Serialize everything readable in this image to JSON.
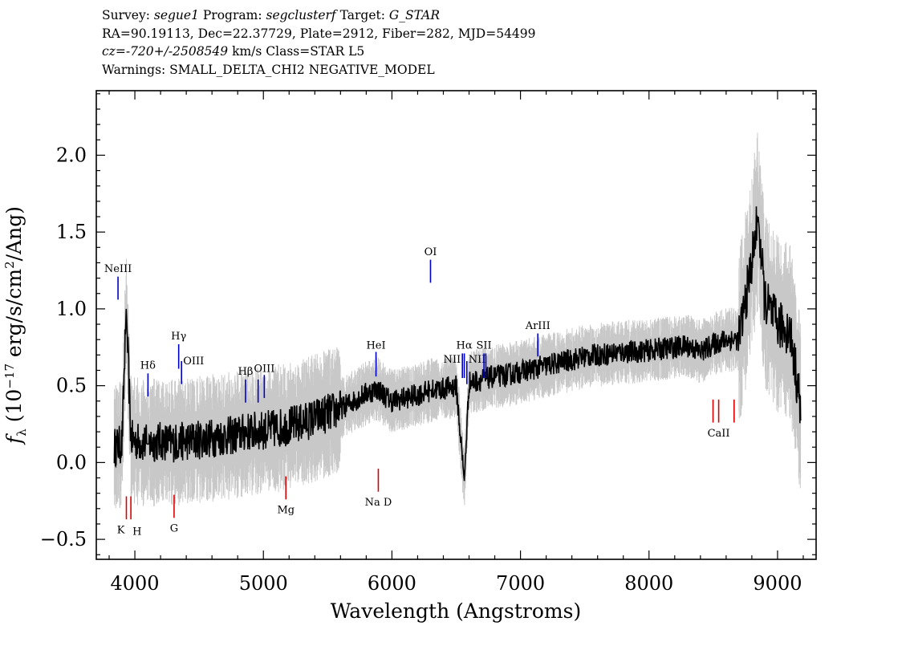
{
  "header": {
    "survey_label": "Survey:",
    "survey": "segue1",
    "program_label": "Program:",
    "program": "segclusterf",
    "target_label": "Target:",
    "target": "G_STAR",
    "line2": "RA=90.19113, Dec=22.37729, Plate=2912, Fiber=282, MJD=54499",
    "cz": "cz=-720+/-2508549",
    "line3_rest": " km/s Class=STAR L5",
    "line4": "Warnings: SMALL_DELTA_CHI2 NEGATIVE_MODEL"
  },
  "chart_data": {
    "type": "line",
    "xlabel": "Wavelength (Angstroms)",
    "ylabel": "f_λ (10^-17 erg/s/cm^2/Ang)",
    "xlim": [
      3700,
      9300
    ],
    "ylim": [
      -0.63,
      2.42
    ],
    "x_ticks": [
      4000,
      5000,
      6000,
      7000,
      8000,
      9000
    ],
    "y_ticks": [
      -0.5,
      0.0,
      0.5,
      1.0,
      1.5,
      2.0
    ],
    "x_tick_labels": [
      "4000",
      "5000",
      "6000",
      "7000",
      "8000",
      "9000"
    ],
    "y_tick_labels": [
      "−0.5",
      "0.0",
      "0.5",
      "1.0",
      "1.5",
      "2.0"
    ],
    "grid": false,
    "colors": {
      "spectrum": "#000000",
      "error_band": "#c8c8c8",
      "emission": "#0000cc",
      "absorption": "#dd0000"
    },
    "series": [
      {
        "role": "spectrum",
        "x": [
          3840,
          3900,
          3933,
          3970,
          4050,
          4101,
          4200,
          4300,
          4400,
          4500,
          4600,
          4700,
          4800,
          4861,
          4900,
          5000,
          5100,
          5200,
          5300,
          5400,
          5500,
          5600,
          5700,
          5800,
          5890,
          5950,
          6000,
          6100,
          6200,
          6300,
          6400,
          6500,
          6563,
          6600,
          6700,
          6800,
          6900,
          7000,
          7100,
          7200,
          7300,
          7400,
          7500,
          7600,
          7700,
          7800,
          7900,
          8000,
          8100,
          8200,
          8300,
          8400,
          8500,
          8600,
          8700,
          8780,
          8850,
          8900,
          9000,
          9100,
          9180
        ],
        "y": [
          0.1,
          0.12,
          1.0,
          0.15,
          0.13,
          0.12,
          0.14,
          0.13,
          0.14,
          0.15,
          0.16,
          0.17,
          0.18,
          0.2,
          0.2,
          0.21,
          0.22,
          0.24,
          0.26,
          0.29,
          0.32,
          0.35,
          0.4,
          0.45,
          0.48,
          0.43,
          0.4,
          0.42,
          0.44,
          0.47,
          0.48,
          0.5,
          -0.12,
          0.52,
          0.54,
          0.56,
          0.57,
          0.59,
          0.61,
          0.63,
          0.65,
          0.67,
          0.69,
          0.7,
          0.71,
          0.72,
          0.72,
          0.73,
          0.74,
          0.75,
          0.76,
          0.72,
          0.77,
          0.8,
          0.8,
          1.2,
          1.6,
          1.05,
          0.9,
          0.85,
          0.35
        ]
      }
    ],
    "spectral_lines": [
      {
        "name": "NeIII",
        "type": "emission",
        "x": 3869,
        "y_top": 1.21,
        "y_bottom": 1.06,
        "label_y": 1.24,
        "anchor": "middle"
      },
      {
        "name": "Hδ",
        "type": "emission",
        "x": 4102,
        "y_top": 0.58,
        "y_bottom": 0.43,
        "label_y": 0.61,
        "anchor": "middle"
      },
      {
        "name": "Hγ",
        "type": "emission",
        "x": 4341,
        "y_top": 0.77,
        "y_bottom": 0.61,
        "label_y": 0.8,
        "anchor": "middle"
      },
      {
        "name": "OIII",
        "type": "emission",
        "x": 4363,
        "y_top": 0.66,
        "y_bottom": 0.51,
        "label_y": 0.64,
        "anchor": "start"
      },
      {
        "name": "Hβ",
        "type": "emission",
        "x": 4861,
        "y_top": 0.54,
        "y_bottom": 0.39,
        "label_y": 0.57,
        "anchor": "middle"
      },
      {
        "name": "OIII",
        "type": "emission",
        "x": 4959,
        "y_top": 0.54,
        "y_bottom": 0.39,
        "label_y": null,
        "anchor": "middle"
      },
      {
        "name": "OIII",
        "type": "emission",
        "x": 5007,
        "y_top": 0.57,
        "y_bottom": 0.42,
        "label_y": 0.59,
        "anchor": "middle"
      },
      {
        "name": "HeI",
        "type": "emission",
        "x": 5876,
        "y_top": 0.72,
        "y_bottom": 0.56,
        "label_y": 0.74,
        "anchor": "middle"
      },
      {
        "name": "OI",
        "type": "emission",
        "x": 6300,
        "y_top": 1.32,
        "y_bottom": 1.17,
        "label_y": 1.35,
        "anchor": "middle"
      },
      {
        "name": "NII",
        "type": "emission",
        "x": 6548,
        "y_top": 0.71,
        "y_bottom": 0.55,
        "label_y": 0.65,
        "anchor": "end"
      },
      {
        "name": "Hα",
        "type": "emission",
        "x": 6563,
        "y_top": 0.71,
        "y_bottom": 0.55,
        "label_y": 0.74,
        "anchor": "middle"
      },
      {
        "name": "NII",
        "type": "emission",
        "x": 6583,
        "y_top": 0.66,
        "y_bottom": 0.51,
        "label_y": 0.65,
        "anchor": "start"
      },
      {
        "name": "SII",
        "type": "emission",
        "x": 6716,
        "y_top": 0.71,
        "y_bottom": 0.55,
        "label_y": 0.74,
        "anchor": "middle"
      },
      {
        "name": "SII",
        "type": "emission",
        "x": 6731,
        "y_top": 0.71,
        "y_bottom": 0.55,
        "label_y": null,
        "anchor": "middle"
      },
      {
        "name": "ArIII",
        "type": "emission",
        "x": 7135,
        "y_top": 0.84,
        "y_bottom": 0.69,
        "label_y": 0.87,
        "anchor": "middle"
      },
      {
        "name": "K",
        "type": "absorption",
        "x": 3934,
        "y_top": -0.22,
        "y_bottom": -0.37,
        "label_y": -0.46,
        "anchor": "end"
      },
      {
        "name": "H",
        "type": "absorption",
        "x": 3969,
        "y_top": -0.22,
        "y_bottom": -0.37,
        "label_y": -0.47,
        "anchor": "start"
      },
      {
        "name": "G",
        "type": "absorption",
        "x": 4305,
        "y_top": -0.21,
        "y_bottom": -0.36,
        "label_y": -0.45,
        "anchor": "middle"
      },
      {
        "name": "Mg",
        "type": "absorption",
        "x": 5175,
        "y_top": -0.09,
        "y_bottom": -0.24,
        "label_y": -0.33,
        "anchor": "middle"
      },
      {
        "name": "Na D",
        "type": "absorption",
        "x": 5894,
        "y_top": -0.04,
        "y_bottom": -0.19,
        "label_y": -0.28,
        "anchor": "middle"
      },
      {
        "name": "CaII",
        "type": "absorption",
        "x": 8498,
        "y_top": 0.41,
        "y_bottom": 0.26,
        "label_y": null,
        "anchor": "middle"
      },
      {
        "name": "CaII",
        "type": "absorption",
        "x": 8542,
        "y_top": 0.41,
        "y_bottom": 0.26,
        "label_y": 0.17,
        "anchor": "middle"
      },
      {
        "name": "CaII",
        "type": "absorption",
        "x": 8662,
        "y_top": 0.41,
        "y_bottom": 0.26,
        "label_y": null,
        "anchor": "middle"
      }
    ]
  }
}
